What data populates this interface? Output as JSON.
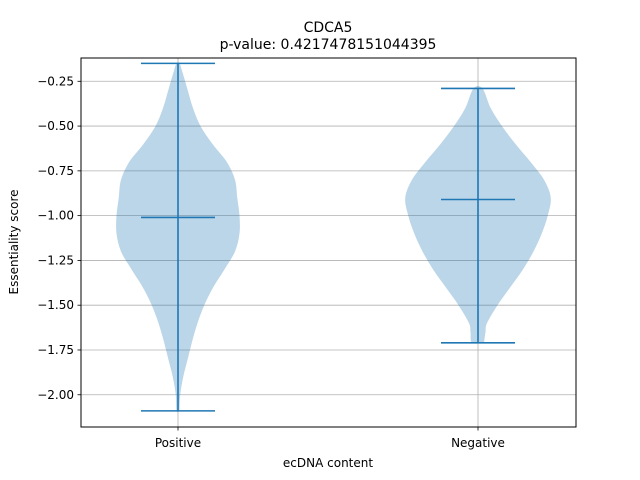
{
  "chart_data": {
    "type": "violin",
    "title": "CDCA5",
    "subtitle": "p-value: 0.4217478151044395",
    "xlabel": "ecDNA content",
    "ylabel": "Essentiality score",
    "categories": [
      "Positive",
      "Negative"
    ],
    "ylim": [
      -2.18,
      -0.12
    ],
    "yticks": [
      -0.25,
      -0.5,
      -0.75,
      -1.0,
      -1.25,
      -1.5,
      -1.75,
      -2.0
    ],
    "ytick_labels": [
      "−0.25",
      "−0.50",
      "−0.75",
      "−1.00",
      "−1.25",
      "−1.50",
      "−1.75",
      "−2.00"
    ],
    "grid": true,
    "colors": {
      "violin_fill": "#1f77b4",
      "violin_alpha": 0.3,
      "lines": "#1f77b4"
    },
    "violins": [
      {
        "category": "Positive",
        "min": -2.09,
        "max": -0.15,
        "median": -1.01,
        "profile": [
          [
            -2.09,
            0.02
          ],
          [
            -2.0,
            0.03
          ],
          [
            -1.9,
            0.07
          ],
          [
            -1.8,
            0.13
          ],
          [
            -1.7,
            0.19
          ],
          [
            -1.6,
            0.26
          ],
          [
            -1.5,
            0.35
          ],
          [
            -1.4,
            0.47
          ],
          [
            -1.3,
            0.62
          ],
          [
            -1.2,
            0.76
          ],
          [
            -1.1,
            0.82
          ],
          [
            -1.0,
            0.82
          ],
          [
            -0.9,
            0.79
          ],
          [
            -0.8,
            0.76
          ],
          [
            -0.7,
            0.65
          ],
          [
            -0.6,
            0.46
          ],
          [
            -0.5,
            0.3
          ],
          [
            -0.4,
            0.2
          ],
          [
            -0.3,
            0.13
          ],
          [
            -0.2,
            0.06
          ],
          [
            -0.15,
            0.02
          ]
        ]
      },
      {
        "category": "Negative",
        "min": -1.71,
        "max": -0.29,
        "median": -0.91,
        "profile": [
          [
            -1.71,
            0.08
          ],
          [
            -1.65,
            0.1
          ],
          [
            -1.6,
            0.12
          ],
          [
            -1.5,
            0.26
          ],
          [
            -1.4,
            0.43
          ],
          [
            -1.3,
            0.6
          ],
          [
            -1.2,
            0.74
          ],
          [
            -1.1,
            0.85
          ],
          [
            -1.0,
            0.93
          ],
          [
            -0.9,
            0.97
          ],
          [
            -0.8,
            0.88
          ],
          [
            -0.7,
            0.7
          ],
          [
            -0.6,
            0.5
          ],
          [
            -0.5,
            0.32
          ],
          [
            -0.4,
            0.17
          ],
          [
            -0.29,
            0.06
          ]
        ]
      }
    ]
  }
}
